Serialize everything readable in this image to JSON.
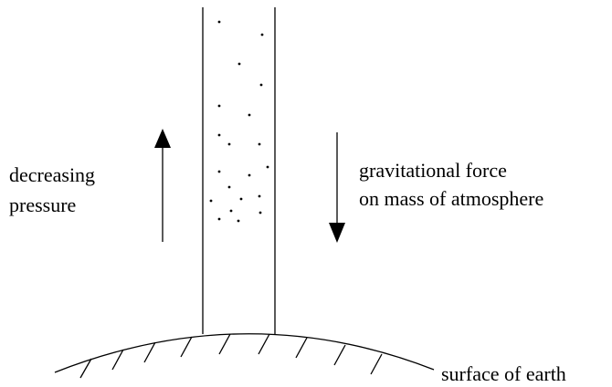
{
  "labels": {
    "left": [
      "decreasing",
      "pressure"
    ],
    "right": [
      "gravitational force",
      "on mass of atmosphere"
    ],
    "surface": "surface of earth"
  }
}
